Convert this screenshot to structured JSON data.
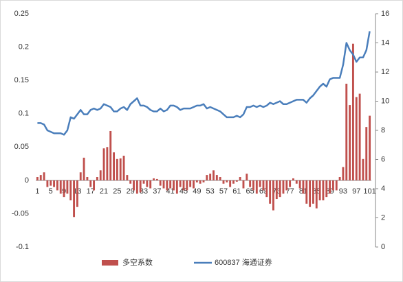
{
  "chart_data": {
    "type": "bar",
    "categories": [
      "1",
      null,
      null,
      null,
      "5",
      null,
      null,
      null,
      "9",
      null,
      null,
      null,
      "13",
      null,
      null,
      null,
      "17",
      null,
      null,
      null,
      "21",
      null,
      null,
      null,
      "25",
      null,
      null,
      null,
      "29",
      null,
      null,
      null,
      "33",
      null,
      null,
      null,
      "37",
      null,
      null,
      null,
      "41",
      null,
      null,
      null,
      "45",
      null,
      null,
      null,
      "49",
      null,
      null,
      null,
      "53",
      null,
      null,
      null,
      "57",
      null,
      null,
      null,
      "61",
      null,
      null,
      null,
      "65",
      null,
      null,
      null,
      "69",
      null,
      null,
      null,
      "73",
      null,
      null,
      null,
      "77",
      null,
      null,
      null,
      "81",
      null,
      null,
      null,
      "85",
      null,
      null,
      null,
      "89",
      null,
      null,
      null,
      "93",
      null,
      null,
      null,
      "97",
      null,
      null,
      null,
      "101"
    ],
    "series": [
      {
        "name": "多空系数",
        "type": "bar",
        "color": "#c0504d",
        "values": [
          0.005,
          0.008,
          0.012,
          -0.01,
          -0.008,
          -0.01,
          -0.015,
          -0.02,
          -0.025,
          -0.02,
          -0.03,
          -0.055,
          -0.04,
          0.012,
          0.034,
          0.005,
          -0.01,
          -0.015,
          0.005,
          0.015,
          0.048,
          0.05,
          0.074,
          0.042,
          0.032,
          0.033,
          0.037,
          0.008,
          -0.005,
          -0.015,
          -0.02,
          -0.018,
          -0.005,
          -0.01,
          -0.012,
          0.003,
          0.002,
          -0.008,
          -0.012,
          -0.015,
          -0.012,
          -0.015,
          -0.02,
          -0.01,
          -0.015,
          -0.015,
          -0.01,
          -0.012,
          -0.003,
          -0.005,
          -0.003,
          0.008,
          0.01,
          0.015,
          0.008,
          0.005,
          -0.005,
          -0.003,
          -0.01,
          -0.005,
          -0.002,
          0.005,
          -0.012,
          0.01,
          -0.01,
          -0.015,
          -0.02,
          -0.01,
          -0.015,
          -0.025,
          -0.035,
          -0.045,
          -0.028,
          -0.025,
          -0.02,
          -0.015,
          -0.01,
          0.003,
          -0.005,
          -0.012,
          -0.02,
          -0.035,
          -0.04,
          -0.035,
          -0.042,
          -0.03,
          -0.03,
          -0.025,
          -0.02,
          -0.015,
          -0.015,
          0.005,
          0.02,
          0.145,
          0.113,
          0.205,
          0.125,
          0.13,
          0.032,
          0.08,
          0.097
        ]
      },
      {
        "name": "600837 海通证券",
        "type": "line",
        "axis": "y2",
        "color": "#4a7ebb",
        "values": [
          8.5,
          8.5,
          8.4,
          8.0,
          7.9,
          7.8,
          7.8,
          7.8,
          7.7,
          8.0,
          8.9,
          8.8,
          9.1,
          9.4,
          9.1,
          9.1,
          9.4,
          9.5,
          9.4,
          9.5,
          9.8,
          9.7,
          9.6,
          9.3,
          9.3,
          9.5,
          9.6,
          9.4,
          9.8,
          10.0,
          10.2,
          9.7,
          9.7,
          9.6,
          9.4,
          9.3,
          9.3,
          9.5,
          9.3,
          9.4,
          9.7,
          9.7,
          9.6,
          9.4,
          9.5,
          9.5,
          9.5,
          9.6,
          9.7,
          9.7,
          9.8,
          9.5,
          9.6,
          9.5,
          9.4,
          9.3,
          9.1,
          8.9,
          8.9,
          8.9,
          9.0,
          8.9,
          9.1,
          9.6,
          9.6,
          9.7,
          9.6,
          9.7,
          9.6,
          9.7,
          9.9,
          9.8,
          9.9,
          10.0,
          9.8,
          9.8,
          9.9,
          10.0,
          10.1,
          10.1,
          10.1,
          9.9,
          10.2,
          10.4,
          10.7,
          11.0,
          11.2,
          11.0,
          11.5,
          11.6,
          11.6,
          11.6,
          12.5,
          14.0,
          13.5,
          13.2,
          12.7,
          13.0,
          13.0,
          13.5,
          14.8
        ]
      }
    ],
    "ylim": [
      -0.1,
      0.25
    ],
    "yticks": [
      -0.1,
      -0.05,
      0,
      0.05,
      0.1,
      0.15,
      0.2,
      0.25
    ],
    "y2lim": [
      0,
      16
    ],
    "y2ticks": [
      0,
      2,
      4,
      6,
      8,
      10,
      12,
      14,
      16
    ],
    "legend": "bottom"
  }
}
